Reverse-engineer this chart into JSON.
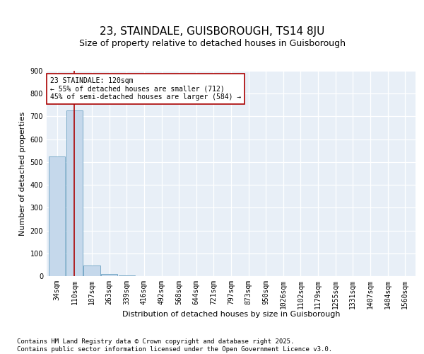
{
  "title": "23, STAINDALE, GUISBOROUGH, TS14 8JU",
  "subtitle": "Size of property relative to detached houses in Guisborough",
  "xlabel": "Distribution of detached houses by size in Guisborough",
  "ylabel": "Number of detached properties",
  "bar_values": [
    525,
    725,
    47,
    10,
    2,
    0,
    0,
    0,
    0,
    0,
    0,
    0,
    0,
    0,
    0,
    0,
    0,
    0,
    0,
    0,
    0
  ],
  "bar_labels": [
    "34sqm",
    "110sqm",
    "187sqm",
    "263sqm",
    "339sqm",
    "416sqm",
    "492sqm",
    "568sqm",
    "644sqm",
    "721sqm",
    "797sqm",
    "873sqm",
    "950sqm",
    "1026sqm",
    "1102sqm",
    "1179sqm",
    "1255sqm",
    "1331sqm",
    "1407sqm",
    "1484sqm",
    "1560sqm"
  ],
  "bar_color": "#c5d8eb",
  "bar_edge_color": "#7aaac8",
  "vline_x": 1,
  "vline_color": "#aa0000",
  "annotation_text": "23 STAINDALE: 120sqm\n← 55% of detached houses are smaller (712)\n45% of semi-detached houses are larger (584) →",
  "annotation_box_color": "#aa0000",
  "background_color": "#e8eff7",
  "grid_color": "#d0d8e4",
  "ylim": [
    0,
    900
  ],
  "yticks": [
    0,
    100,
    200,
    300,
    400,
    500,
    600,
    700,
    800,
    900
  ],
  "footer_text": "Contains HM Land Registry data © Crown copyright and database right 2025.\nContains public sector information licensed under the Open Government Licence v3.0.",
  "title_fontsize": 11,
  "subtitle_fontsize": 9,
  "axis_label_fontsize": 8,
  "tick_fontsize": 7,
  "annotation_fontsize": 7,
  "footer_fontsize": 6.5
}
